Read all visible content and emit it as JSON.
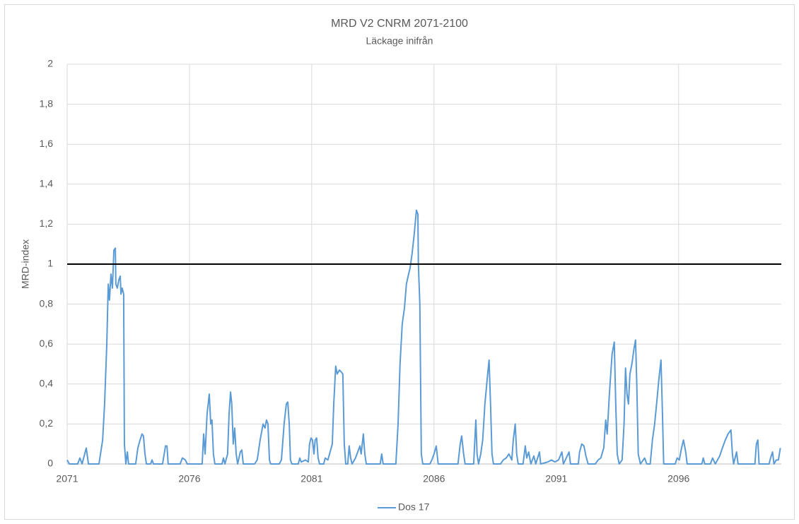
{
  "chart_data": {
    "type": "line",
    "title": "MRD V2 CNRM 2071-2100",
    "subtitle": "Läckage inifrån",
    "y_label": "MRD-index",
    "xlim": [
      2071,
      2100.2
    ],
    "xticks": [
      2071,
      2076,
      2081,
      2086,
      2091,
      2096
    ],
    "ylim": [
      0,
      2
    ],
    "yticks": [
      0,
      {
        "value": 0.2,
        "label": "0,2"
      },
      {
        "value": 0.4,
        "label": "0,4"
      },
      {
        "value": 0.6,
        "label": "0,6"
      },
      {
        "value": 0.8,
        "label": "0,8"
      },
      1,
      {
        "value": 1.2,
        "label": "1,2"
      },
      {
        "value": 1.4,
        "label": "1,4"
      },
      {
        "value": 1.6,
        "label": "1,6"
      },
      {
        "value": 1.8,
        "label": "1,8"
      },
      2
    ],
    "grid": true,
    "reference_line": 1,
    "reference_color": "#000000",
    "legend": "bottom",
    "x": [
      2071.0,
      2071.09,
      2071.43,
      2071.52,
      2071.61,
      2071.78,
      2071.87,
      2072.3,
      2072.45,
      2072.53,
      2072.62,
      2072.68,
      2072.73,
      2072.79,
      2072.85,
      2072.91,
      2072.97,
      2072.99,
      2073.05,
      2073.11,
      2073.17,
      2073.2,
      2073.25,
      2073.31,
      2073.34,
      2073.4,
      2073.46,
      2073.51,
      2073.8,
      2073.89,
      2073.98,
      2074.06,
      2074.12,
      2074.18,
      2074.24,
      2074.41,
      2074.47,
      2074.53,
      2074.9,
      2075.02,
      2075.08,
      2075.13,
      2075.62,
      2075.71,
      2075.83,
      2075.91,
      2076.52,
      2076.58,
      2076.64,
      2076.72,
      2076.81,
      2076.87,
      2076.92,
      2076.98,
      2077.04,
      2077.33,
      2077.39,
      2077.45,
      2077.56,
      2077.62,
      2077.68,
      2077.73,
      2077.79,
      2077.85,
      2077.91,
      2077.97,
      2078.08,
      2078.14,
      2078.2,
      2078.66,
      2078.77,
      2078.89,
      2079.01,
      2079.09,
      2079.15,
      2079.21,
      2079.27,
      2079.32,
      2079.67,
      2079.76,
      2079.87,
      2079.96,
      2080.02,
      2080.08,
      2080.13,
      2080.19,
      2080.45,
      2080.51,
      2080.57,
      2080.74,
      2080.86,
      2080.91,
      2080.97,
      2081.03,
      2081.09,
      2081.14,
      2081.2,
      2081.26,
      2081.32,
      2081.49,
      2081.55,
      2081.66,
      2081.84,
      2081.9,
      2081.98,
      2082.04,
      2082.13,
      2082.21,
      2082.27,
      2082.33,
      2082.39,
      2082.47,
      2082.53,
      2082.59,
      2082.65,
      2082.79,
      2082.88,
      2082.97,
      2083.02,
      2083.11,
      2083.17,
      2083.23,
      2083.8,
      2083.86,
      2083.92,
      2084.44,
      2084.53,
      2084.61,
      2084.7,
      2084.79,
      2084.87,
      2084.96,
      2085.02,
      2085.1,
      2085.19,
      2085.28,
      2085.34,
      2085.36,
      2085.42,
      2085.48,
      2085.54,
      2085.83,
      2085.91,
      2086.0,
      2086.09,
      2086.17,
      2086.98,
      2087.07,
      2087.13,
      2087.21,
      2087.27,
      2087.62,
      2087.71,
      2087.76,
      2087.82,
      2087.91,
      2087.99,
      2088.08,
      2088.17,
      2088.25,
      2088.31,
      2088.37,
      2088.43,
      2088.72,
      2088.83,
      2088.95,
      2089.06,
      2089.18,
      2089.24,
      2089.32,
      2089.38,
      2089.44,
      2089.64,
      2089.73,
      2089.79,
      2089.87,
      2089.96,
      2090.08,
      2090.16,
      2090.31,
      2090.36,
      2090.65,
      2090.8,
      2090.94,
      2091.09,
      2091.23,
      2091.29,
      2091.52,
      2091.58,
      2091.9,
      2091.95,
      2092.04,
      2092.13,
      2092.21,
      2092.3,
      2092.59,
      2092.71,
      2092.82,
      2092.94,
      2093.02,
      2093.08,
      2093.17,
      2093.28,
      2093.37,
      2093.43,
      2093.49,
      2093.57,
      2093.69,
      2093.77,
      2093.83,
      2093.89,
      2093.95,
      2094.01,
      2094.09,
      2094.18,
      2094.24,
      2094.29,
      2094.35,
      2094.44,
      2094.61,
      2094.7,
      2094.84,
      2094.93,
      2095.02,
      2095.1,
      2095.19,
      2095.28,
      2095.34,
      2095.39,
      2095.86,
      2095.94,
      2096.03,
      2096.12,
      2096.2,
      2096.29,
      2096.35,
      2096.95,
      2097.01,
      2097.07,
      2097.3,
      2097.39,
      2097.5,
      2097.68,
      2097.79,
      2097.91,
      2098.02,
      2098.14,
      2098.2,
      2098.25,
      2098.37,
      2098.43,
      2099.12,
      2099.18,
      2099.24,
      2099.29,
      2099.7,
      2099.76,
      2099.84,
      2099.9,
      2099.99,
      2100.08,
      2100.16
    ],
    "series": [
      {
        "name": "Dos 17",
        "color": "#5b9bd5",
        "values": [
          0.02,
          0,
          0,
          0.03,
          0,
          0.08,
          0,
          0,
          0.12,
          0.3,
          0.6,
          0.9,
          0.82,
          0.95,
          0.88,
          1.07,
          1.08,
          0.9,
          0.88,
          0.92,
          0.94,
          0.85,
          0.88,
          0.85,
          0.1,
          0,
          0.06,
          0,
          0,
          0.08,
          0.12,
          0.15,
          0.14,
          0.05,
          0,
          0,
          0.02,
          0,
          0,
          0.09,
          0.09,
          0,
          0,
          0.03,
          0.02,
          0,
          0,
          0.15,
          0.05,
          0.25,
          0.35,
          0.2,
          0.22,
          0.05,
          0,
          0,
          0.03,
          0,
          0.05,
          0.25,
          0.36,
          0.3,
          0.1,
          0.18,
          0.05,
          0,
          0.06,
          0.07,
          0,
          0,
          0.02,
          0.12,
          0.2,
          0.18,
          0.22,
          0.2,
          0.02,
          0,
          0,
          0.02,
          0.2,
          0.3,
          0.31,
          0.2,
          0.02,
          0,
          0,
          0.03,
          0.01,
          0.02,
          0.01,
          0.1,
          0.13,
          0.12,
          0.05,
          0.12,
          0.13,
          0.03,
          0,
          0,
          0.03,
          0.02,
          0.1,
          0.3,
          0.49,
          0.45,
          0.47,
          0.46,
          0.45,
          0.1,
          0,
          0,
          0.09,
          0.03,
          0,
          0.03,
          0.06,
          0.09,
          0.05,
          0.15,
          0.05,
          0,
          0,
          0.05,
          0,
          0,
          0.2,
          0.5,
          0.7,
          0.78,
          0.9,
          0.95,
          0.98,
          1.05,
          1.15,
          1.27,
          1.25,
          1.0,
          0.8,
          0.05,
          0,
          0,
          0.02,
          0.05,
          0.09,
          0,
          0,
          0.1,
          0.14,
          0.05,
          0,
          0,
          0.22,
          0.05,
          0,
          0.05,
          0.12,
          0.3,
          0.42,
          0.52,
          0.3,
          0.05,
          0,
          0,
          0.02,
          0.03,
          0.05,
          0.02,
          0.12,
          0.2,
          0.05,
          0,
          0,
          0.09,
          0.03,
          0.06,
          0,
          0.04,
          0,
          0.06,
          0,
          0.01,
          0.02,
          0.01,
          0.02,
          0.06,
          0,
          0.06,
          0,
          0,
          0.06,
          0.1,
          0.09,
          0.04,
          0,
          0,
          0.02,
          0.03,
          0.08,
          0.22,
          0.15,
          0.35,
          0.55,
          0.61,
          0.3,
          0.05,
          0,
          0.02,
          0.2,
          0.48,
          0.35,
          0.3,
          0.45,
          0.5,
          0.58,
          0.62,
          0.4,
          0.05,
          0,
          0.03,
          0,
          0,
          0.12,
          0.2,
          0.3,
          0.42,
          0.52,
          0.25,
          0,
          0,
          0.03,
          0.02,
          0.08,
          0.12,
          0.06,
          0,
          0,
          0.03,
          0,
          0,
          0.03,
          0,
          0.04,
          0.08,
          0.12,
          0.15,
          0.17,
          0.05,
          0,
          0.06,
          0,
          0,
          0.1,
          0.12,
          0,
          0,
          0.03,
          0.06,
          0,
          0.02,
          0.02,
          0.08
        ]
      }
    ]
  }
}
